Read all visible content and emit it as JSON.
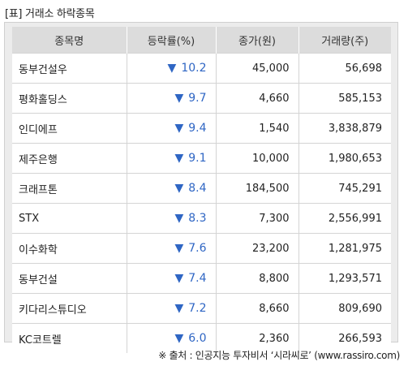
{
  "title": "[표] 거래소 하락종목",
  "headers": [
    "종목명",
    "등락률(%)",
    "종가(원)",
    "거래량(주)"
  ],
  "down_arrow": "▼",
  "rate_color": "#2f66c4",
  "rows": [
    {
      "name": "동부건설우",
      "rate": "10.2",
      "close": "45,000",
      "volume": "56,698"
    },
    {
      "name": "평화홀딩스",
      "rate": "9.7",
      "close": "4,660",
      "volume": "585,153"
    },
    {
      "name": "인디에프",
      "rate": "9.4",
      "close": "1,540",
      "volume": "3,838,879"
    },
    {
      "name": "제주은행",
      "rate": "9.1",
      "close": "10,000",
      "volume": "1,980,653"
    },
    {
      "name": "크래프톤",
      "rate": "8.4",
      "close": "184,500",
      "volume": "745,291"
    },
    {
      "name": "STX",
      "rate": "8.3",
      "close": "7,300",
      "volume": "2,556,991"
    },
    {
      "name": "이수화학",
      "rate": "7.6",
      "close": "23,200",
      "volume": "1,281,975"
    },
    {
      "name": "동부건설",
      "rate": "7.4",
      "close": "8,800",
      "volume": "1,293,571"
    },
    {
      "name": "키다리스튜디오",
      "rate": "7.2",
      "close": "8,660",
      "volume": "809,690"
    },
    {
      "name": "KC코트렐",
      "rate": "6.0",
      "close": "2,360",
      "volume": "266,593"
    }
  ],
  "source": "※ 출처 : 인공지능 투자비서 ‘시라씨로’ (www.rassiro.com)"
}
